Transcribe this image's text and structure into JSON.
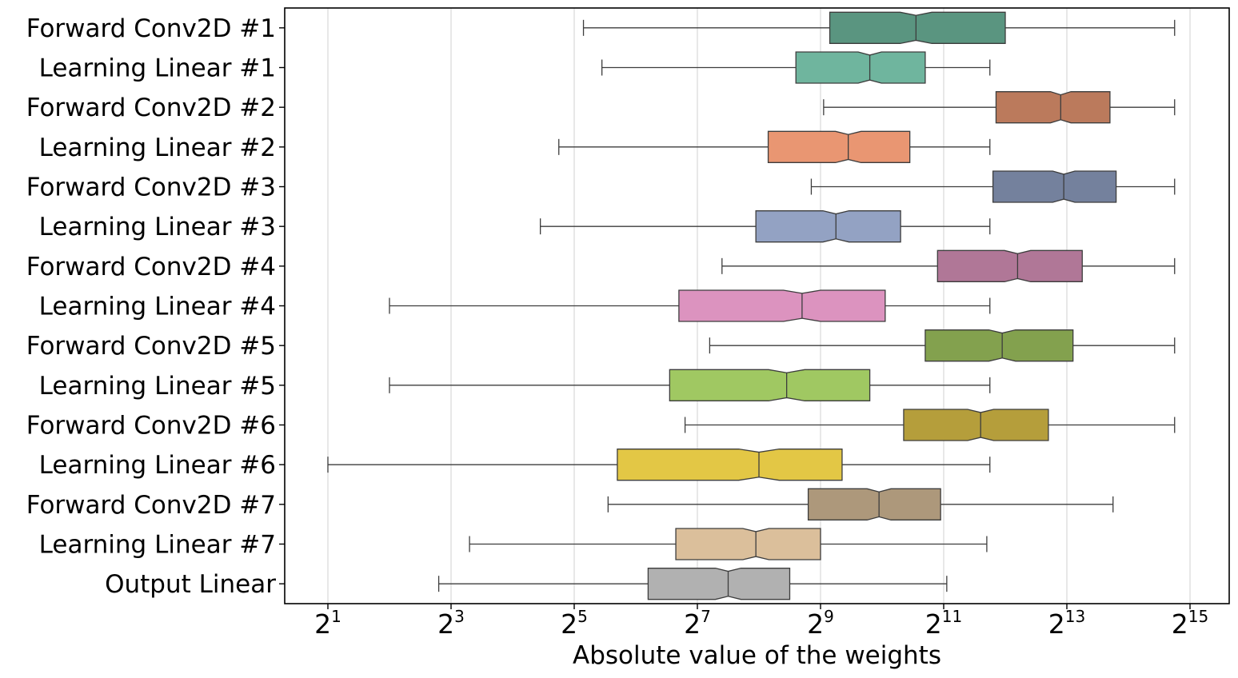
{
  "chart_data": {
    "type": "boxplot",
    "orientation": "horizontal",
    "notched": true,
    "xlabel": "Absolute value of the weights",
    "xscale": "log2",
    "xlim": [
      1.0,
      15.4
    ],
    "xticks": [
      {
        "base": "2",
        "exp": "1",
        "value": 1
      },
      {
        "base": "2",
        "exp": "3",
        "value": 3
      },
      {
        "base": "2",
        "exp": "5",
        "value": 5
      },
      {
        "base": "2",
        "exp": "7",
        "value": 7
      },
      {
        "base": "2",
        "exp": "9",
        "value": 9
      },
      {
        "base": "2",
        "exp": "11",
        "value": 11
      },
      {
        "base": "2",
        "exp": "13",
        "value": 13
      },
      {
        "base": "2",
        "exp": "15",
        "value": 15
      }
    ],
    "grid": "vertical",
    "series": [
      {
        "name": "Forward Conv2D #1",
        "color": "#5a9580",
        "whislo": 5.15,
        "q1": 9.15,
        "med": 10.55,
        "q3": 12.0,
        "whishi": 14.75
      },
      {
        "name": "Learning Linear #1",
        "color": "#6fb59e",
        "whislo": 5.45,
        "q1": 8.6,
        "med": 9.8,
        "q3": 10.7,
        "whishi": 11.75
      },
      {
        "name": "Forward Conv2D #2",
        "color": "#bb7a5c",
        "whislo": 9.05,
        "q1": 11.85,
        "med": 12.9,
        "q3": 13.7,
        "whishi": 14.75
      },
      {
        "name": "Learning Linear #2",
        "color": "#e99672",
        "whislo": 4.75,
        "q1": 8.15,
        "med": 9.45,
        "q3": 10.45,
        "whishi": 11.75
      },
      {
        "name": "Forward Conv2D #3",
        "color": "#74819d",
        "whislo": 8.85,
        "q1": 11.8,
        "med": 12.95,
        "q3": 13.8,
        "whishi": 14.75
      },
      {
        "name": "Learning Linear #3",
        "color": "#93a2c3",
        "whislo": 4.45,
        "q1": 7.95,
        "med": 9.25,
        "q3": 10.3,
        "whishi": 11.75
      },
      {
        "name": "Forward Conv2D #4",
        "color": "#b07797",
        "whislo": 7.4,
        "q1": 10.9,
        "med": 12.2,
        "q3": 13.25,
        "whishi": 14.75
      },
      {
        "name": "Learning Linear #4",
        "color": "#dc93bf",
        "whislo": 2.0,
        "q1": 6.7,
        "med": 8.7,
        "q3": 10.05,
        "whishi": 11.75
      },
      {
        "name": "Forward Conv2D #5",
        "color": "#83a14e",
        "whislo": 7.2,
        "q1": 10.7,
        "med": 11.95,
        "q3": 13.1,
        "whishi": 14.75
      },
      {
        "name": "Learning Linear #5",
        "color": "#a0c862",
        "whislo": 2.0,
        "q1": 6.55,
        "med": 8.45,
        "q3": 9.8,
        "whishi": 11.75
      },
      {
        "name": "Forward Conv2D #6",
        "color": "#b59e3b",
        "whislo": 6.8,
        "q1": 10.35,
        "med": 11.6,
        "q3": 12.7,
        "whishi": 14.75
      },
      {
        "name": "Learning Linear #6",
        "color": "#e3c745",
        "whislo": 1.0,
        "q1": 5.7,
        "med": 8.0,
        "q3": 9.35,
        "whishi": 11.75
      },
      {
        "name": "Forward Conv2D #7",
        "color": "#ad987b",
        "whislo": 5.55,
        "q1": 8.8,
        "med": 9.95,
        "q3": 10.95,
        "whishi": 13.75
      },
      {
        "name": "Learning Linear #7",
        "color": "#dbbf9b",
        "whislo": 3.3,
        "q1": 6.65,
        "med": 7.95,
        "q3": 9.0,
        "whishi": 11.7
      },
      {
        "name": "Output Linear",
        "color": "#b1b1b1",
        "whislo": 2.8,
        "q1": 6.2,
        "med": 7.5,
        "q3": 8.5,
        "whishi": 11.05
      }
    ]
  }
}
